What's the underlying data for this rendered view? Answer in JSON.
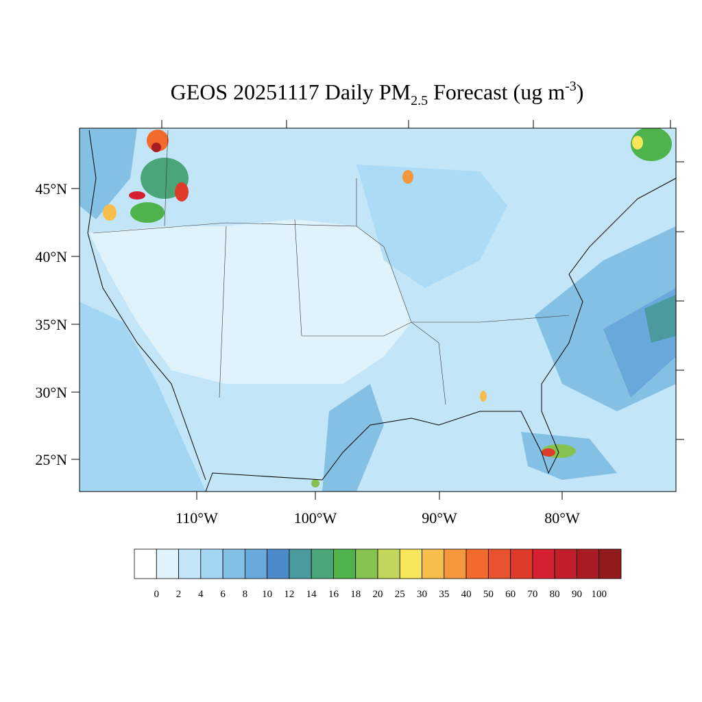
{
  "title": {
    "main": "GEOS 20251117 Daily PM",
    "sub": "2.5",
    "mid": " Forecast (ug m",
    "sup": "-3",
    "end": ")"
  },
  "lat_labels": [
    "45°N",
    "40°N",
    "35°N",
    "30°N",
    "25°N"
  ],
  "lon_labels": [
    "110°W",
    "100°W",
    "90°W",
    "80°W"
  ],
  "colorbar": {
    "levels": [
      0,
      2,
      4,
      6,
      8,
      10,
      12,
      14,
      16,
      18,
      20,
      25,
      30,
      35,
      40,
      50,
      60,
      70,
      80,
      90,
      100
    ],
    "colors": [
      "#ffffff",
      "#e0f3fb",
      "#c2e6f7",
      "#a3d6f3",
      "#84bfe4",
      "#69a8da",
      "#4b8bc9",
      "#4a9a9e",
      "#4aa678",
      "#4db34a",
      "#85c24f",
      "#c2d65b",
      "#f8e65a",
      "#f7be4e",
      "#f6973e",
      "#f26b2d",
      "#e8522e",
      "#de3a29",
      "#d42030",
      "#bf1e2a",
      "#a81b22",
      "#901a1c"
    ]
  }
}
